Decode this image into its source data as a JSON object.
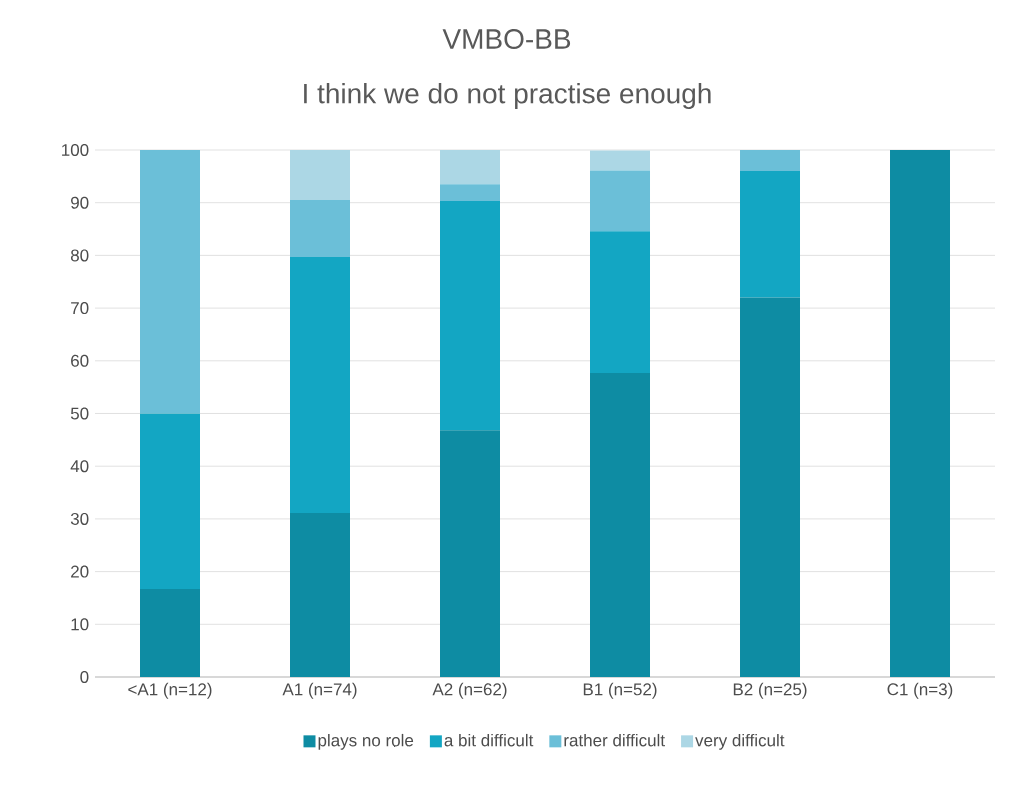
{
  "chart_data": {
    "type": "bar",
    "stacked": true,
    "title": "VMBO-BB",
    "subtitle": "I think we do not practise enough",
    "categories": [
      "<A1 (n=12)",
      "A1 (n=74)",
      "A2 (n=62)",
      "B1 (n=52)",
      "B2 (n=25)",
      "C1 (n=3)"
    ],
    "series": [
      {
        "name": "plays no role",
        "color": "#0e8ca3",
        "values": [
          16.7,
          31.1,
          46.8,
          57.7,
          72,
          100
        ]
      },
      {
        "name": "a bit difficult",
        "color": "#13a6c3",
        "values": [
          33.3,
          48.6,
          43.5,
          26.9,
          24,
          0
        ]
      },
      {
        "name": "rather difficult",
        "color": "#6bbfd8",
        "values": [
          50,
          10.8,
          3.2,
          11.5,
          4,
          0
        ]
      },
      {
        "name": "very difficult",
        "color": "#acd7e5",
        "values": [
          0,
          9.5,
          6.5,
          3.8,
          0,
          0
        ]
      }
    ],
    "ylim": [
      0,
      100
    ],
    "yticks": [
      0,
      10,
      20,
      30,
      40,
      50,
      60,
      70,
      80,
      90,
      100
    ],
    "grid": "y",
    "legend": "bottom"
  }
}
